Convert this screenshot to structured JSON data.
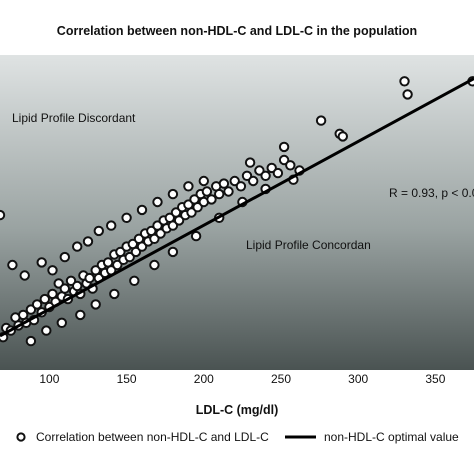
{
  "chart_data": {
    "type": "scatter",
    "title": "Correlation between non-HDL-C and LDL-C in the population",
    "xlabel": "LDL-C (mg/dl)",
    "ylabel": "",
    "xlim": [
      68,
      375
    ],
    "ylim": [
      70,
      310
    ],
    "x_ticks": [
      "100",
      "150",
      "200",
      "250",
      "300",
      "350"
    ],
    "x_tick_values": [
      100,
      150,
      200,
      250,
      300,
      350
    ],
    "y_ticks_visible": false,
    "grid": false,
    "legend_position": "bottom",
    "colors": {
      "background_top": "#dfe3e3",
      "background_bottom": "#4a5352",
      "marker_fill": "#ffffff",
      "marker_edge": "#111111",
      "line": "#000000"
    },
    "annotations": {
      "discordant": "Lipid Profile Discordant",
      "concordant": "Lipid Profile Concordan",
      "stats": "R = 0.93, p < 0.0"
    },
    "series": [
      {
        "name": "Correlation between non-HDL-C and LDL-C",
        "kind": "scatter",
        "points": [
          [
            70,
            95
          ],
          [
            72,
            102
          ],
          [
            75,
            100
          ],
          [
            78,
            110
          ],
          [
            80,
            104
          ],
          [
            83,
            112
          ],
          [
            85,
            106
          ],
          [
            88,
            116
          ],
          [
            90,
            108
          ],
          [
            92,
            120
          ],
          [
            95,
            114
          ],
          [
            97,
            124
          ],
          [
            100,
            118
          ],
          [
            102,
            128
          ],
          [
            104,
            122
          ],
          [
            106,
            136
          ],
          [
            108,
            126
          ],
          [
            110,
            132
          ],
          [
            112,
            124
          ],
          [
            114,
            138
          ],
          [
            116,
            130
          ],
          [
            118,
            134
          ],
          [
            120,
            128
          ],
          [
            122,
            142
          ],
          [
            124,
            136
          ],
          [
            126,
            140
          ],
          [
            128,
            132
          ],
          [
            130,
            146
          ],
          [
            132,
            140
          ],
          [
            134,
            150
          ],
          [
            136,
            144
          ],
          [
            138,
            152
          ],
          [
            140,
            146
          ],
          [
            142,
            158
          ],
          [
            144,
            150
          ],
          [
            146,
            160
          ],
          [
            148,
            154
          ],
          [
            150,
            164
          ],
          [
            152,
            156
          ],
          [
            154,
            166
          ],
          [
            156,
            160
          ],
          [
            158,
            170
          ],
          [
            160,
            164
          ],
          [
            162,
            174
          ],
          [
            164,
            168
          ],
          [
            166,
            176
          ],
          [
            168,
            170
          ],
          [
            170,
            180
          ],
          [
            172,
            174
          ],
          [
            174,
            184
          ],
          [
            176,
            178
          ],
          [
            178,
            186
          ],
          [
            180,
            180
          ],
          [
            182,
            190
          ],
          [
            184,
            184
          ],
          [
            186,
            194
          ],
          [
            188,
            188
          ],
          [
            190,
            196
          ],
          [
            192,
            190
          ],
          [
            194,
            200
          ],
          [
            196,
            194
          ],
          [
            198,
            204
          ],
          [
            200,
            198
          ],
          [
            202,
            206
          ],
          [
            205,
            200
          ],
          [
            208,
            210
          ],
          [
            210,
            204
          ],
          [
            213,
            212
          ],
          [
            216,
            206
          ],
          [
            220,
            214
          ],
          [
            224,
            210
          ],
          [
            228,
            218
          ],
          [
            232,
            214
          ],
          [
            236,
            222
          ],
          [
            240,
            218
          ],
          [
            244,
            224
          ],
          [
            248,
            220
          ],
          [
            252,
            230
          ],
          [
            256,
            226
          ],
          [
            76,
            150
          ],
          [
            84,
            142
          ],
          [
            95,
            152
          ],
          [
            102,
            146
          ],
          [
            110,
            156
          ],
          [
            118,
            164
          ],
          [
            125,
            168
          ],
          [
            132,
            176
          ],
          [
            140,
            180
          ],
          [
            150,
            186
          ],
          [
            160,
            192
          ],
          [
            170,
            198
          ],
          [
            180,
            204
          ],
          [
            190,
            210
          ],
          [
            200,
            214
          ],
          [
            88,
            92
          ],
          [
            98,
            100
          ],
          [
            108,
            106
          ],
          [
            120,
            112
          ],
          [
            130,
            120
          ],
          [
            142,
            128
          ],
          [
            155,
            138
          ],
          [
            168,
            150
          ],
          [
            180,
            160
          ],
          [
            195,
            172
          ],
          [
            210,
            186
          ],
          [
            225,
            198
          ],
          [
            240,
            208
          ],
          [
            68,
            188
          ],
          [
            230,
            228
          ],
          [
            252,
            240
          ],
          [
            258,
            215
          ],
          [
            262,
            222
          ],
          [
            276,
            260
          ],
          [
            288,
            250
          ],
          [
            290,
            248
          ],
          [
            330,
            290
          ],
          [
            332,
            280
          ],
          [
            374,
            290
          ]
        ]
      },
      {
        "name": "non-HDL-C optimal value",
        "kind": "line",
        "points": [
          [
            68,
            96
          ],
          [
            375,
            292
          ]
        ]
      }
    ]
  }
}
